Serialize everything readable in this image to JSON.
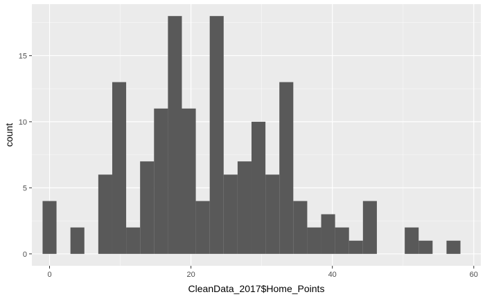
{
  "chart_data": {
    "type": "bar",
    "subtype": "histogram",
    "xlabel": "CleanData_2017$Home_Points",
    "ylabel": "count",
    "xlim": [
      -2.5,
      61
    ],
    "ylim": [
      -0.9,
      18.9
    ],
    "x_ticks": [
      0,
      20,
      40,
      60
    ],
    "y_ticks": [
      0,
      5,
      10,
      15
    ],
    "x_tick_labels": [
      "0",
      "20",
      "40",
      "60"
    ],
    "y_tick_labels": [
      "0",
      "5",
      "10",
      "15"
    ],
    "grid": true,
    "legend": "none",
    "bin_width": 1.97,
    "bins": [
      {
        "x": 0.0,
        "count": 4
      },
      {
        "x": 1.97,
        "count": 0
      },
      {
        "x": 3.94,
        "count": 2
      },
      {
        "x": 5.91,
        "count": 0
      },
      {
        "x": 7.88,
        "count": 6
      },
      {
        "x": 9.85,
        "count": 13
      },
      {
        "x": 11.82,
        "count": 2
      },
      {
        "x": 13.79,
        "count": 7
      },
      {
        "x": 15.76,
        "count": 11
      },
      {
        "x": 17.73,
        "count": 18
      },
      {
        "x": 19.7,
        "count": 11
      },
      {
        "x": 21.67,
        "count": 4
      },
      {
        "x": 23.64,
        "count": 18
      },
      {
        "x": 25.61,
        "count": 6
      },
      {
        "x": 27.58,
        "count": 7
      },
      {
        "x": 29.55,
        "count": 10
      },
      {
        "x": 31.52,
        "count": 6
      },
      {
        "x": 33.49,
        "count": 13
      },
      {
        "x": 35.46,
        "count": 4
      },
      {
        "x": 37.43,
        "count": 2
      },
      {
        "x": 39.4,
        "count": 3
      },
      {
        "x": 41.37,
        "count": 2
      },
      {
        "x": 43.34,
        "count": 1
      },
      {
        "x": 45.31,
        "count": 4
      },
      {
        "x": 47.28,
        "count": 0
      },
      {
        "x": 49.25,
        "count": 0
      },
      {
        "x": 51.22,
        "count": 2
      },
      {
        "x": 53.19,
        "count": 1
      },
      {
        "x": 55.16,
        "count": 0
      },
      {
        "x": 57.13,
        "count": 1
      }
    ],
    "colors": {
      "panel": "#ebebeb",
      "grid_major": "#ffffff",
      "bar": "#595959",
      "tick": "#333333"
    }
  }
}
